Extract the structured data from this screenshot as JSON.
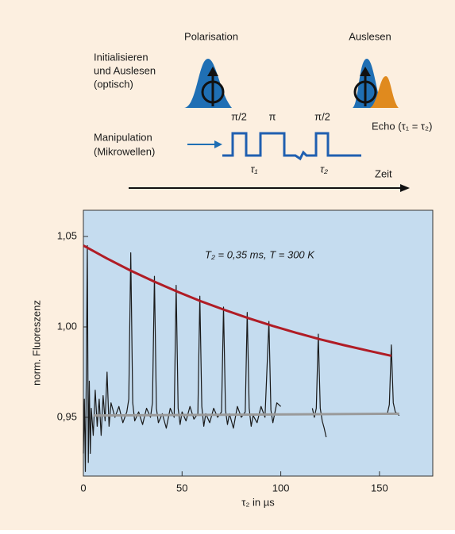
{
  "diagram": {
    "initialize_label": [
      "Initialisieren",
      "und Auslesen",
      "(optisch)"
    ],
    "polarisation_label": "Polarisation",
    "readout_label": "Auslesen",
    "manipulation_label": [
      "Manipulation",
      "(Mikrowellen)"
    ],
    "pulse_labels": [
      "π/2",
      "π",
      "π/2"
    ],
    "tau_labels": [
      "τ₁",
      "τ₂"
    ],
    "echo_label": "Echo (τ₁ = τ₂)",
    "time_label": "Zeit"
  },
  "chart_data": {
    "type": "line",
    "annotation": "T₂ = 0,35 ms, T = 300 K",
    "xlabel": "τ₂ in µs",
    "ylabel": "norm. Fluoreszenz",
    "xlim": [
      0,
      177
    ],
    "ylim": [
      0.9175,
      1.0645
    ],
    "xticks": [
      0,
      50,
      100,
      150
    ],
    "yticks": [
      {
        "value": 0.95,
        "label": "0,95"
      },
      {
        "value": 1.0,
        "label": "1,00"
      },
      {
        "value": 1.05,
        "label": "1,05"
      }
    ],
    "series": [
      {
        "color": "#1a1a1a",
        "x": [
          0,
          0.5,
          1,
          1.5,
          2,
          2.5,
          3,
          3.5,
          4,
          5,
          6,
          7,
          8,
          9,
          10,
          11,
          12,
          13,
          14,
          16,
          18,
          20,
          22,
          23,
          24,
          25,
          26,
          28,
          30,
          32,
          34,
          35,
          36,
          37,
          38,
          40,
          42,
          44,
          46,
          47,
          48,
          49,
          50,
          52,
          54,
          56,
          58,
          59,
          60,
          61,
          62,
          64,
          66,
          68,
          70,
          71,
          72,
          73,
          74,
          76,
          78,
          80,
          82,
          83,
          84,
          85,
          86,
          88,
          90,
          92,
          94,
          95,
          96,
          98,
          100,
          110,
          116,
          117,
          118,
          119,
          120,
          121,
          122,
          123,
          140,
          154,
          155,
          156,
          157,
          158,
          160
        ],
        "values": [
          0.93,
          0.96,
          0.92,
          0.975,
          1.045,
          0.925,
          0.97,
          0.93,
          0.955,
          0.94,
          0.965,
          0.945,
          0.96,
          0.94,
          0.962,
          0.948,
          0.975,
          0.945,
          0.958,
          0.95,
          0.956,
          0.947,
          0.953,
          0.96,
          1.041,
          0.958,
          0.948,
          0.953,
          0.946,
          0.955,
          0.95,
          0.958,
          1.028,
          0.955,
          0.947,
          0.952,
          0.944,
          0.955,
          0.95,
          1.023,
          0.955,
          0.946,
          0.953,
          0.948,
          0.956,
          0.949,
          0.952,
          1.017,
          0.956,
          0.945,
          0.952,
          0.947,
          0.955,
          0.95,
          0.953,
          1.011,
          0.954,
          0.946,
          0.952,
          0.944,
          0.956,
          0.95,
          0.953,
          1.008,
          0.955,
          0.945,
          0.951,
          0.947,
          0.956,
          0.95,
          1.003,
          0.954,
          0.947,
          0.958,
          0.956,
          null,
          0.955,
          0.95,
          0.955,
          0.996,
          0.955,
          0.948,
          0.944,
          0.939,
          null,
          0.952,
          0.957,
          0.99,
          0.958,
          0.953,
          0.951
        ]
      },
      {
        "color": "#b01c25",
        "x": [
          0,
          12,
          24,
          36,
          48,
          60,
          72,
          84,
          96,
          108,
          120,
          132,
          144,
          156
        ],
        "values": [
          1.045,
          1.0378,
          1.0311,
          1.025,
          1.0193,
          1.014,
          1.0092,
          1.0047,
          1.0005,
          0.9967,
          0.9931,
          0.9899,
          0.9869,
          0.984
        ]
      },
      {
        "color": "#9a9a9a",
        "x": [
          5,
          160
        ],
        "values": [
          0.951,
          0.952
        ]
      }
    ]
  }
}
